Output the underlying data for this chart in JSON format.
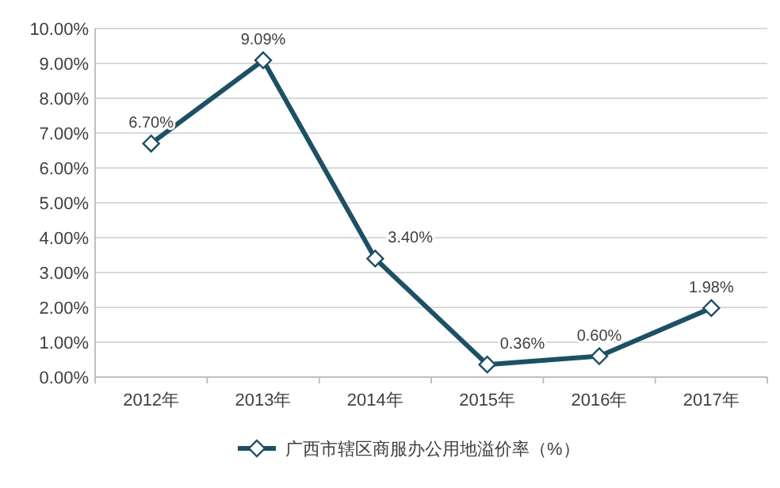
{
  "chart_data": {
    "type": "line",
    "categories": [
      "2012年",
      "2013年",
      "2014年",
      "2015年",
      "2016年",
      "2017年"
    ],
    "series": [
      {
        "name": "广西市辖区商服办公用地溢价率（%）",
        "color": "#1d5064",
        "values": [
          6.7,
          9.09,
          3.4,
          0.36,
          0.6,
          1.98
        ],
        "value_labels": [
          "6.70%",
          "9.09%",
          "3.40%",
          "0.36%",
          "0.60%",
          "1.98%"
        ]
      }
    ],
    "ylim": [
      0,
      10
    ],
    "yticks": [
      {
        "value": 0,
        "label": "0.00%"
      },
      {
        "value": 1,
        "label": "1.00%"
      },
      {
        "value": 2,
        "label": "2.00%"
      },
      {
        "value": 3,
        "label": "3.00%"
      },
      {
        "value": 4,
        "label": "4.00%"
      },
      {
        "value": 5,
        "label": "5.00%"
      },
      {
        "value": 6,
        "label": "6.00%"
      },
      {
        "value": 7,
        "label": "7.00%"
      },
      {
        "value": 8,
        "label": "8.00%"
      },
      {
        "value": 9,
        "label": "9.00%"
      },
      {
        "value": 10,
        "label": "10.00%"
      }
    ],
    "grid": "y",
    "legend": "bottom",
    "marker": "diamond",
    "line_style": "solid"
  }
}
